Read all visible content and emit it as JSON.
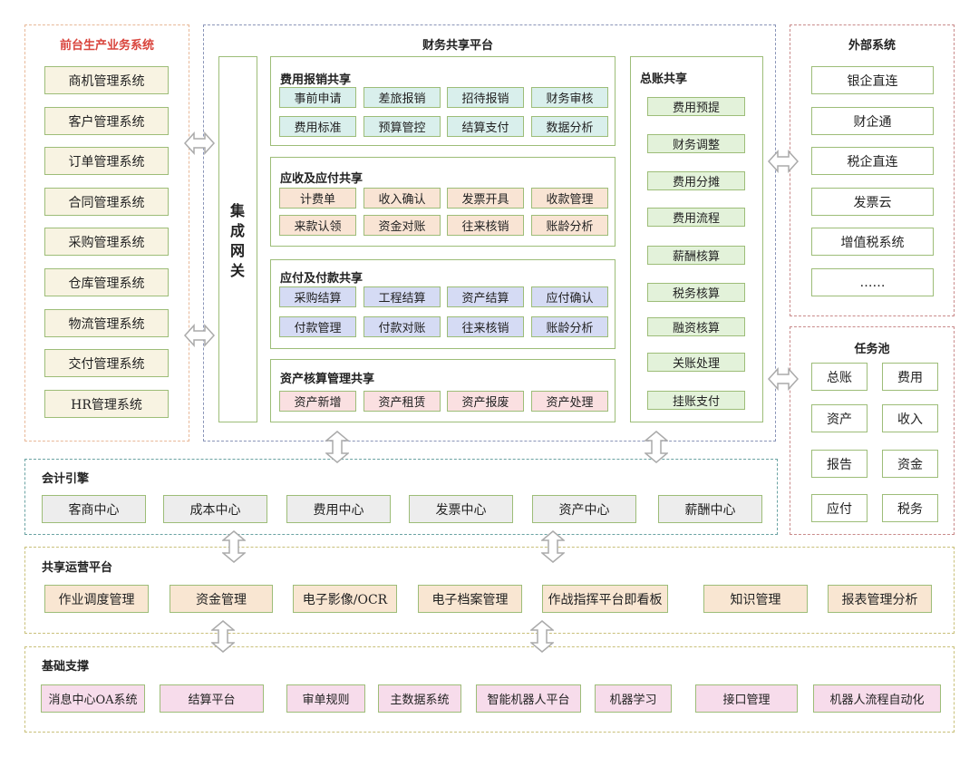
{
  "colors": {
    "front_border": "#e8b898",
    "platform_border": "#8a95b8",
    "external_border": "#c98a8a",
    "engine_border": "#6aa3a3",
    "ops_border": "#c9c07a",
    "item_border": "#9dbd78"
  },
  "front": {
    "title": "前台生产业务系统",
    "items": [
      "商机管理系统",
      "客户管理系统",
      "订单管理系统",
      "合同管理系统",
      "采购管理系统",
      "仓库管理系统",
      "物流管理系统",
      "交付管理系统",
      "HR管理系统"
    ]
  },
  "platform": {
    "title": "财务共享平台",
    "gateway": "集成网关",
    "sections": [
      {
        "title": "费用报销共享",
        "fill": "#d9efec",
        "items": [
          "事前申请",
          "差旅报销",
          "招待报销",
          "财务审核",
          "费用标准",
          "预算管控",
          "结算支付",
          "数据分析"
        ]
      },
      {
        "title": "应收及应付共享",
        "fill": "#f9e4d4",
        "items": [
          "计费单",
          "收入确认",
          "发票开具",
          "收款管理",
          "来款认领",
          "资金对账",
          "往来核销",
          "账龄分析"
        ]
      },
      {
        "title": "应付及付款共享",
        "fill": "#d5dbf4",
        "items": [
          "采购结算",
          "工程结算",
          "资产结算",
          "应付确认",
          "付款管理",
          "付款对账",
          "往来核销",
          "账龄分析"
        ]
      },
      {
        "title": "资产核算管理共享",
        "fill": "#fae0e1",
        "items": [
          "资产新增",
          "资产租赁",
          "资产报废",
          "资产处理"
        ]
      }
    ],
    "ledger": {
      "title": "总账共享",
      "fill": "#e3f2da",
      "items": [
        "费用预提",
        "财务调整",
        "费用分摊",
        "费用流程",
        "薪酬核算",
        "税务核算",
        "融资核算",
        "关账处理",
        "挂账支付"
      ]
    }
  },
  "external": {
    "title": "外部系统",
    "items": [
      "银企直连",
      "财企通",
      "税企直连",
      "发票云",
      "增值税系统",
      "……"
    ]
  },
  "task_pool": {
    "title": "任务池",
    "items": [
      "总账",
      "费用",
      "资产",
      "收入",
      "报告",
      "资金",
      "应付",
      "税务"
    ]
  },
  "engine": {
    "title": "会计引擎",
    "fill": "#ededed",
    "items": [
      "客商中心",
      "成本中心",
      "费用中心",
      "发票中心",
      "资产中心",
      "薪酬中心"
    ]
  },
  "ops": {
    "title": "共享运营平台",
    "fill": "#f9e6d2",
    "items": [
      "作业调度管理",
      "资金管理",
      "电子影像/OCR",
      "电子档案管理",
      "作战指挥平台即看板",
      "知识管理",
      "报表管理分析"
    ]
  },
  "foundation": {
    "title": "基础支撑",
    "fill": "#f7dceb",
    "items": [
      "消息中心OA系统",
      "结算平台",
      "审单规则",
      "主数据系统",
      "智能机器人平台",
      "机器学习",
      "接口管理",
      "机器人流程自动化"
    ]
  }
}
